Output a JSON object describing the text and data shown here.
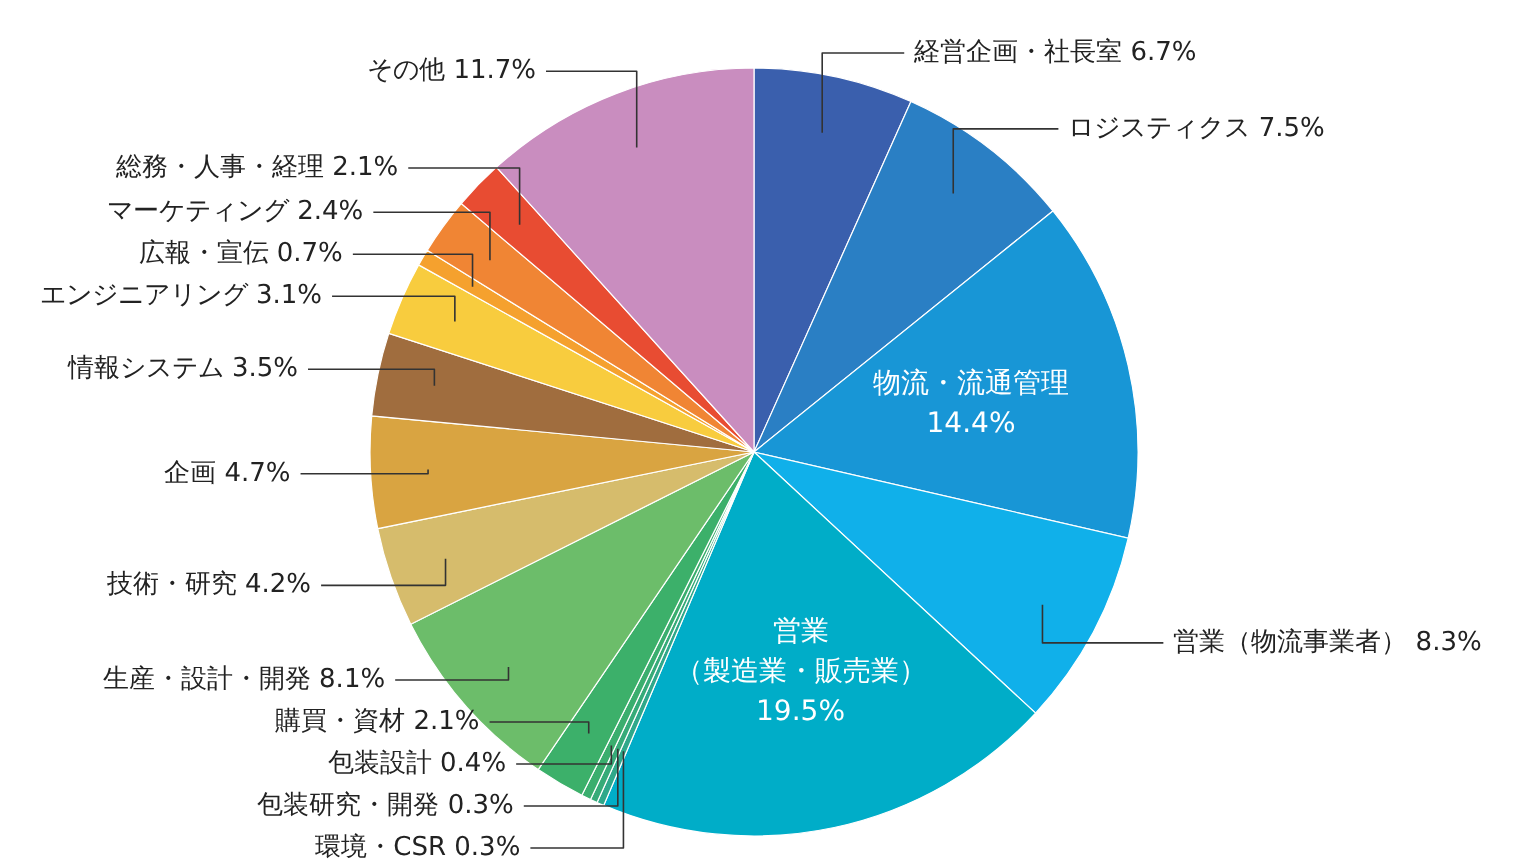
{
  "chart_data": {
    "type": "pie",
    "categories": [
      "経営企画・社長室",
      "ロジスティクス",
      "物流・流通管理",
      "営業（物流事業者）",
      "営業（製造業・販売業）",
      "環境・CSR",
      "包装研究・開発",
      "包装設計",
      "購買・資材",
      "生産・設計・開発",
      "技術・研究",
      "企画",
      "情報システム",
      "エンジニアリング",
      "広報・宣伝",
      "マーケティング",
      "総務・人事・経理",
      "その他"
    ],
    "values": [
      6.7,
      7.5,
      14.4,
      8.3,
      19.5,
      0.3,
      0.3,
      0.4,
      2.1,
      8.1,
      4.2,
      4.7,
      3.5,
      3.1,
      0.7,
      2.4,
      2.1,
      11.7
    ],
    "value_labels": [
      "6.7%",
      "7.5%",
      "14.4%",
      "8.3%",
      "19.5%",
      "0.3%",
      "0.3%",
      "0.4%",
      "2.1%",
      "8.1%",
      "4.2%",
      "4.7%",
      "3.5%",
      "3.1%",
      "0.7%",
      "2.4%",
      "2.1%",
      "11.7%"
    ],
    "colors": [
      "#3a5fad",
      "#2a7fc4",
      "#1896d6",
      "#10b0ea",
      "#00adc8",
      "#2fa88a",
      "#36ab78",
      "#3aae6e",
      "#3cb06a",
      "#6cbd6a",
      "#d6bc6c",
      "#d9a441",
      "#a06d3e",
      "#f8cc3e",
      "#f5a12e",
      "#f08534",
      "#e84c32",
      "#c98dbf"
    ]
  }
}
